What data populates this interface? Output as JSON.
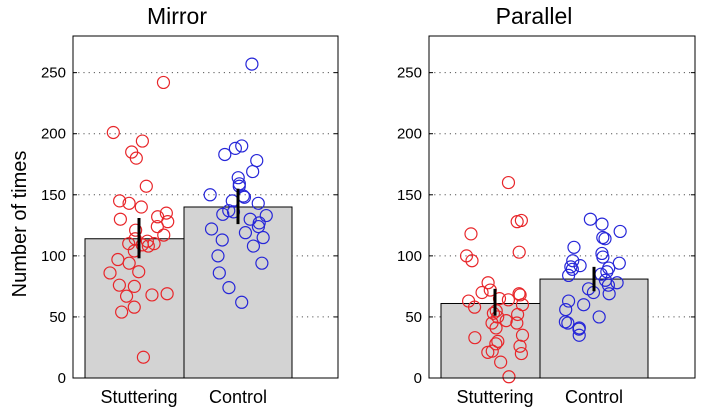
{
  "figure": {
    "ylabel": "Number of times"
  },
  "colors": {
    "stuttering": "#e8262a",
    "control": "#2626d8",
    "bar": "#d3d3d3",
    "error": "#000000"
  },
  "chart_data": [
    {
      "type": "bar",
      "title": "Mirror",
      "xlabel": "",
      "ylabel": "Number of times",
      "ylim": [
        0,
        280
      ],
      "yticks": [
        0,
        50,
        100,
        150,
        200,
        250
      ],
      "grid": true,
      "categories": [
        "Stuttering",
        "Control"
      ],
      "values": [
        114,
        140
      ],
      "errors": [
        [
          98,
          131
        ],
        [
          126,
          155
        ]
      ],
      "points": [
        [
          242,
          201,
          194,
          185,
          180,
          157,
          145,
          143,
          140,
          135,
          132,
          130,
          128,
          124,
          121,
          117,
          114,
          112,
          110,
          110,
          109,
          108,
          104,
          97,
          94,
          87,
          86,
          76,
          75,
          69,
          68,
          67,
          58,
          54,
          17
        ],
        [
          257,
          190,
          188,
          183,
          178,
          169,
          164,
          159,
          157,
          150,
          149,
          148,
          145,
          143,
          137,
          136,
          134,
          133,
          130,
          127,
          124,
          122,
          119,
          115,
          113,
          108,
          100,
          94,
          86,
          74,
          62
        ]
      ]
    },
    {
      "type": "bar",
      "title": "Parallel",
      "xlabel": "",
      "ylabel": "",
      "ylim": [
        0,
        280
      ],
      "yticks": [
        0,
        50,
        100,
        150,
        200,
        250
      ],
      "grid": true,
      "categories": [
        "Stuttering",
        "Control"
      ],
      "values": [
        61,
        81
      ],
      "errors": [
        [
          51,
          73
        ],
        [
          71,
          91
        ]
      ],
      "points": [
        [
          160,
          129,
          128,
          118,
          103,
          100,
          96,
          78,
          72,
          70,
          69,
          68,
          65,
          64,
          63,
          60,
          58,
          55,
          53,
          52,
          50,
          47,
          45,
          45,
          41,
          35,
          33,
          30,
          28,
          26,
          22,
          21,
          20,
          13,
          1
        ],
        [
          130,
          126,
          120,
          115,
          114,
          107,
          102,
          99,
          96,
          94,
          92,
          91,
          90,
          89,
          87,
          85,
          84,
          80,
          78,
          76,
          73,
          70,
          69,
          63,
          60,
          56,
          50,
          46,
          45,
          41,
          40,
          35
        ]
      ]
    }
  ]
}
